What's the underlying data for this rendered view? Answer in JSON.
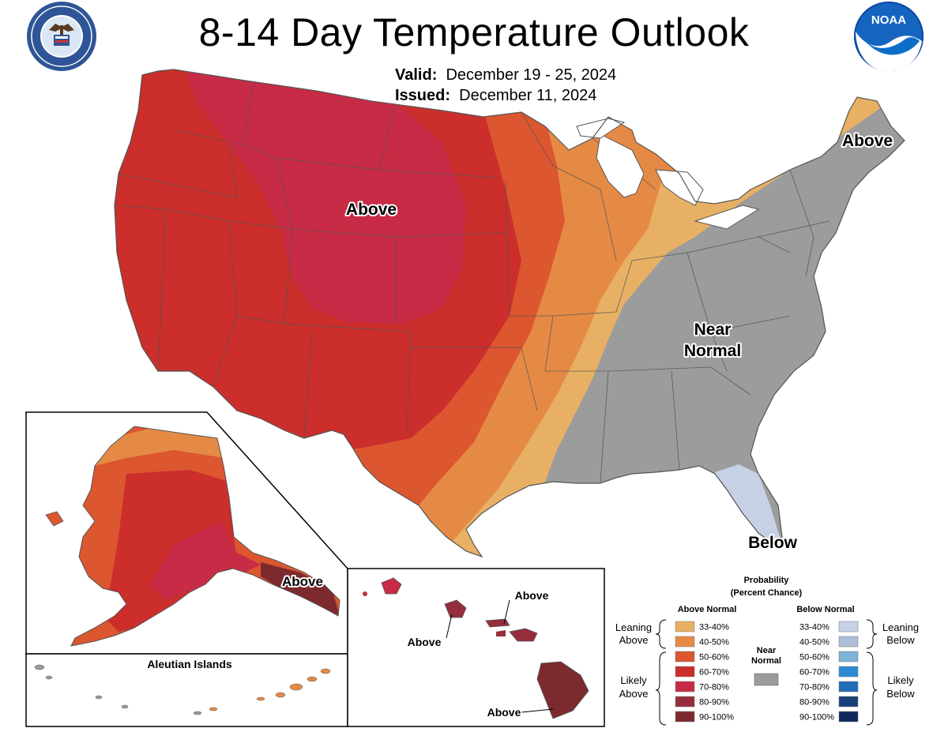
{
  "title": "8-14 Day Temperature Outlook",
  "valid_label": "Valid:",
  "valid_value": "December 19 - 25, 2024",
  "issued_label": "Issued:",
  "issued_value": "December 11, 2024",
  "logos": {
    "left": "department-of-commerce-seal",
    "right": "noaa-logo",
    "noaa_text": "NOAA",
    "seal_text": "DEPARTMENT OF COMMERCE · UNITED STATES OF AMERICA"
  },
  "map_labels": {
    "west_above": "Above",
    "maine_above": "Above",
    "near_normal_1": "Near",
    "near_normal_2": "Normal",
    "florida_below": "Below",
    "alaska_above": "Above",
    "aleutian_title": "Aleutian Islands",
    "hawaii_above_1": "Above",
    "hawaii_above_2": "Above",
    "hawaii_above_3": "Above"
  },
  "legend": {
    "title_1": "Probability",
    "title_2": "(Percent Chance)",
    "above_header": "Above Normal",
    "below_header": "Below Normal",
    "near_header_1": "Near",
    "near_header_2": "Normal",
    "leaning_above_1": "Leaning",
    "leaning_above_2": "Above",
    "likely_above_1": "Likely",
    "likely_above_2": "Above",
    "leaning_below_1": "Leaning",
    "leaning_below_2": "Below",
    "likely_below_1": "Likely",
    "likely_below_2": "Below",
    "above": [
      {
        "range": "33-40%",
        "color": "#E8B064"
      },
      {
        "range": "40-50%",
        "color": "#E58A45"
      },
      {
        "range": "50-60%",
        "color": "#DC5630"
      },
      {
        "range": "60-70%",
        "color": "#CB2E2B"
      },
      {
        "range": "70-80%",
        "color": "#C82B45"
      },
      {
        "range": "80-90%",
        "color": "#962D3C"
      },
      {
        "range": "90-100%",
        "color": "#7D2A2E"
      }
    ],
    "below": [
      {
        "range": "33-40%",
        "color": "#C6D1E6"
      },
      {
        "range": "40-50%",
        "color": "#ADBFD9"
      },
      {
        "range": "50-60%",
        "color": "#7FB3D8"
      },
      {
        "range": "60-70%",
        "color": "#2B8AD4"
      },
      {
        "range": "70-80%",
        "color": "#1F6DB8"
      },
      {
        "range": "80-90%",
        "color": "#183F78"
      },
      {
        "range": "90-100%",
        "color": "#11275E"
      }
    ],
    "near_color": "#9C9C9C"
  },
  "colors": {
    "near_normal": "#9C9C9C",
    "border": "#555555"
  }
}
